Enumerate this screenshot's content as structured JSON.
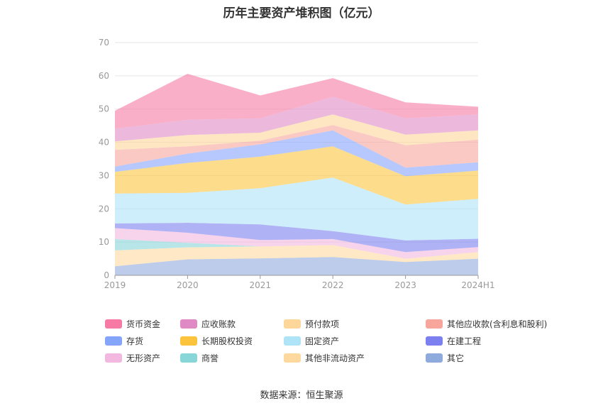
{
  "chart_data": {
    "type": "area",
    "stacked": true,
    "title": "历年主要资产堆积图（亿元）",
    "x": [
      "2019",
      "2020",
      "2021",
      "2022",
      "2023",
      "2024H1"
    ],
    "ylim": [
      0,
      70
    ],
    "yticks": [
      0,
      10,
      20,
      30,
      40,
      50,
      60,
      70
    ],
    "grid": true,
    "legend_position": "bottom",
    "series": [
      {
        "name": "其它",
        "color": "#8faadc",
        "values": [
          2.7,
          4.8,
          5.1,
          5.5,
          4.0,
          5.0
        ]
      },
      {
        "name": "其他非流动资产",
        "color": "#fdd9a0",
        "values": [
          4.8,
          3.6,
          3.6,
          3.6,
          1.0,
          2.0
        ]
      },
      {
        "name": "商誉",
        "color": "#88d6d8",
        "values": [
          3.4,
          1.4,
          0.0,
          0.0,
          0.0,
          0.0
        ]
      },
      {
        "name": "无形资产",
        "color": "#f2b8e0",
        "values": [
          3.3,
          3.0,
          1.9,
          1.8,
          2.0,
          1.5
        ]
      },
      {
        "name": "在建工程",
        "color": "#7b7ff0",
        "values": [
          1.4,
          3.0,
          4.7,
          2.4,
          3.5,
          2.5
        ]
      },
      {
        "name": "固定资产",
        "color": "#aee3f8",
        "values": [
          9.0,
          9.0,
          10.9,
          16.1,
          10.8,
          12.0
        ]
      },
      {
        "name": "长期股权投资",
        "color": "#fcc43d",
        "values": [
          6.5,
          9.0,
          9.5,
          9.4,
          8.5,
          8.5
        ]
      },
      {
        "name": "存货",
        "color": "#85a4fb",
        "values": [
          1.6,
          2.8,
          3.7,
          4.8,
          2.6,
          2.5
        ]
      },
      {
        "name": "其他应收款(含利息和股利)",
        "color": "#f8a59c",
        "values": [
          5.0,
          2.2,
          1.1,
          1.6,
          6.7,
          6.8
        ]
      },
      {
        "name": "预付款项",
        "color": "#fdd69a",
        "values": [
          2.6,
          3.4,
          2.4,
          3.2,
          3.2,
          2.8
        ]
      },
      {
        "name": "应收账款",
        "color": "#df8ac4",
        "values": [
          3.8,
          4.6,
          4.3,
          5.3,
          4.9,
          4.8
        ]
      },
      {
        "name": "货币资金",
        "color": "#f77aa4",
        "values": [
          5.4,
          13.8,
          6.9,
          5.6,
          4.8,
          2.3
        ]
      }
    ]
  },
  "legend": [
    {
      "label": "货币资金",
      "color": "#f77aa4"
    },
    {
      "label": "应收账款",
      "color": "#df8ac4"
    },
    {
      "label": "预付款项",
      "color": "#fdd69a"
    },
    {
      "label": "其他应收款(含利息和股利)",
      "color": "#f8a59c"
    },
    {
      "label": "存货",
      "color": "#85a4fb"
    },
    {
      "label": "长期股权投资",
      "color": "#fcc43d"
    },
    {
      "label": "固定资产",
      "color": "#aee3f8"
    },
    {
      "label": "在建工程",
      "color": "#7b7ff0"
    },
    {
      "label": "无形资产",
      "color": "#f2b8e0"
    },
    {
      "label": "商誉",
      "color": "#88d6d8"
    },
    {
      "label": "其他非流动资产",
      "color": "#fdd9a0"
    },
    {
      "label": "其它",
      "color": "#8faadc"
    }
  ],
  "source_note": "数据来源：恒生聚源"
}
